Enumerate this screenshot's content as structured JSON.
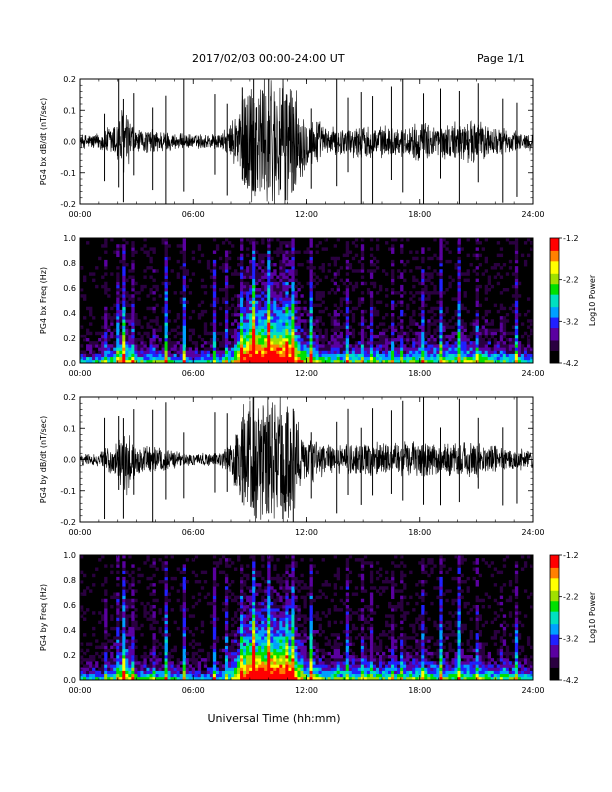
{
  "header": {
    "title": "2017/02/03  00:00-24:00 UT",
    "page": "Page 1/1"
  },
  "xlabel": "Universal Time (hh:mm)",
  "colors": {
    "trace": "#000000",
    "colormap": [
      "#000000",
      "#2a0040",
      "#5a00a0",
      "#2020ff",
      "#00a0ff",
      "#00e0c0",
      "#00e000",
      "#a0e000",
      "#ffff00",
      "#ff8000",
      "#ff0000"
    ]
  },
  "chart_data": [
    {
      "type": "line",
      "ylabel": "PG4 bx dB/dt (nT/sec)",
      "xlim": [
        0,
        24
      ],
      "ylim": [
        -0.2,
        0.2
      ],
      "xticks": [
        "00:00",
        "06:00",
        "12:00",
        "18:00",
        "24:00"
      ],
      "yticks": [
        "-0.2",
        "-0.1",
        "0.0",
        "0.1",
        "0.2"
      ],
      "amplitude_envelope": {
        "hours": [
          0,
          1,
          1.8,
          2.3,
          3,
          4,
          5,
          6,
          7,
          7.5,
          8,
          8.5,
          9,
          10,
          11,
          11.5,
          12,
          12.5,
          13,
          14,
          15,
          16,
          17,
          18,
          19,
          20,
          21,
          22,
          23,
          24
        ],
        "half_width": [
          0.025,
          0.03,
          0.07,
          0.13,
          0.04,
          0.045,
          0.03,
          0.025,
          0.03,
          0.03,
          0.06,
          0.17,
          0.25,
          0.25,
          0.25,
          0.17,
          0.09,
          0.09,
          0.05,
          0.05,
          0.06,
          0.055,
          0.05,
          0.07,
          0.06,
          0.07,
          0.08,
          0.05,
          0.04,
          0.03
        ]
      }
    },
    {
      "type": "heatmap",
      "ylabel": "PG4 bx Freq (Hz)",
      "xlim": [
        0,
        24
      ],
      "ylim": [
        0,
        1
      ],
      "xticks": [
        "00:00",
        "06:00",
        "12:00",
        "18:00",
        "24:00"
      ],
      "yticks": [
        "0.0",
        "0.2",
        "0.4",
        "0.6",
        "0.8",
        "1.0"
      ],
      "colorbar": {
        "label": "Log10 Power",
        "range": [
          -4.2,
          -1.2
        ],
        "ticks": [
          "-1.2",
          "-2.2",
          "-3.2",
          "-4.2"
        ]
      },
      "spikes_hours": [
        1.3,
        2.05,
        2.3,
        2.85,
        3.85,
        4.55,
        5.5,
        7.15,
        7.8,
        8.6,
        9.2,
        10.0,
        10.9,
        11.3,
        12.25,
        13.6,
        14.2,
        14.9,
        15.5,
        16.5,
        17.1,
        18.2,
        19.1,
        20.1,
        21.1,
        22.4,
        23.15
      ]
    },
    {
      "type": "line",
      "ylabel": "PG4 by dB/dt (nT/sec)",
      "xlim": [
        0,
        24
      ],
      "ylim": [
        -0.2,
        0.2
      ],
      "xticks": [
        "00:00",
        "06:00",
        "12:00",
        "18:00",
        "24:00"
      ],
      "yticks": [
        "-0.2",
        "-0.1",
        "0.0",
        "0.1",
        "0.2"
      ],
      "amplitude_envelope": {
        "hours": [
          0,
          1,
          1.8,
          2.5,
          3,
          4,
          5,
          6,
          7,
          7.5,
          8,
          8.5,
          9,
          10,
          11,
          11.5,
          12,
          12.5,
          13,
          14,
          15,
          16,
          17,
          18,
          19,
          20,
          21,
          22,
          23,
          24
        ],
        "half_width": [
          0.02,
          0.025,
          0.06,
          0.13,
          0.05,
          0.05,
          0.03,
          0.02,
          0.025,
          0.03,
          0.07,
          0.17,
          0.25,
          0.25,
          0.25,
          0.16,
          0.08,
          0.085,
          0.05,
          0.055,
          0.065,
          0.06,
          0.06,
          0.07,
          0.06,
          0.065,
          0.07,
          0.05,
          0.04,
          0.03
        ]
      }
    },
    {
      "type": "heatmap",
      "ylabel": "PG4 by Freq (Hz)",
      "xlim": [
        0,
        24
      ],
      "ylim": [
        0,
        1
      ],
      "xticks": [
        "00:00",
        "06:00",
        "12:00",
        "18:00",
        "24:00"
      ],
      "yticks": [
        "0.0",
        "0.2",
        "0.4",
        "0.6",
        "0.8",
        "1.0"
      ],
      "colorbar": {
        "label": "Log10 Power",
        "range": [
          -4.2,
          -1.2
        ],
        "ticks": [
          "-1.2",
          "-2.2",
          "-3.2",
          "-4.2"
        ]
      },
      "spikes_hours": [
        1.3,
        2.05,
        2.3,
        2.85,
        3.85,
        4.55,
        5.5,
        7.15,
        7.8,
        8.6,
        9.2,
        10.0,
        10.9,
        11.3,
        12.25,
        13.6,
        14.2,
        14.9,
        15.5,
        16.5,
        17.1,
        18.2,
        19.1,
        20.1,
        21.1,
        22.4,
        23.15
      ]
    }
  ]
}
